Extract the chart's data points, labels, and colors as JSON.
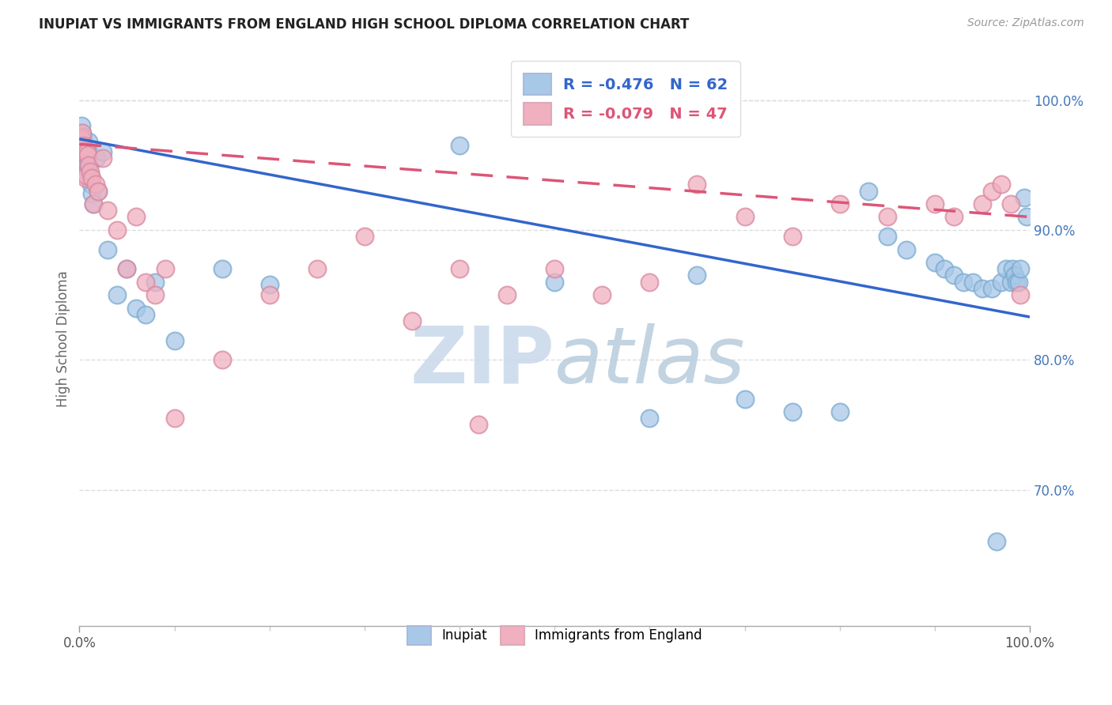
{
  "title": "INUPIAT VS IMMIGRANTS FROM ENGLAND HIGH SCHOOL DIPLOMA CORRELATION CHART",
  "source": "Source: ZipAtlas.com",
  "ylabel": "High School Diploma",
  "blue_color": "#a8c8e8",
  "blue_edge": "#7aaad0",
  "pink_color": "#f0b0c0",
  "pink_edge": "#d888a0",
  "blue_line_color": "#3366cc",
  "pink_line_color": "#dd5577",
  "watermark_zip_color": "#c8d8ea",
  "watermark_atlas_color": "#b8ccdc",
  "blue_R": -0.476,
  "blue_N": 62,
  "pink_R": -0.079,
  "pink_N": 47,
  "blue_x": [
    0.001,
    0.002,
    0.002,
    0.003,
    0.003,
    0.004,
    0.004,
    0.005,
    0.005,
    0.006,
    0.006,
    0.007,
    0.007,
    0.008,
    0.008,
    0.009,
    0.01,
    0.01,
    0.011,
    0.012,
    0.013,
    0.015,
    0.018,
    0.02,
    0.025,
    0.03,
    0.04,
    0.05,
    0.06,
    0.07,
    0.08,
    0.1,
    0.15,
    0.2,
    0.4,
    0.5,
    0.6,
    0.65,
    0.7,
    0.75,
    0.8,
    0.83,
    0.85,
    0.87,
    0.9,
    0.91,
    0.92,
    0.93,
    0.94,
    0.95,
    0.96,
    0.965,
    0.97,
    0.975,
    0.98,
    0.982,
    0.984,
    0.986,
    0.988,
    0.99,
    0.994,
    0.997
  ],
  "blue_y": [
    0.97,
    0.975,
    0.98,
    0.965,
    0.97,
    0.972,
    0.968,
    0.96,
    0.955,
    0.958,
    0.962,
    0.948,
    0.952,
    0.956,
    0.945,
    0.963,
    0.95,
    0.968,
    0.942,
    0.935,
    0.928,
    0.92,
    0.955,
    0.93,
    0.96,
    0.885,
    0.85,
    0.87,
    0.84,
    0.835,
    0.86,
    0.815,
    0.87,
    0.858,
    0.965,
    0.86,
    0.755,
    0.865,
    0.77,
    0.76,
    0.76,
    0.93,
    0.895,
    0.885,
    0.875,
    0.87,
    0.865,
    0.86,
    0.86,
    0.855,
    0.855,
    0.66,
    0.86,
    0.87,
    0.86,
    0.87,
    0.865,
    0.86,
    0.86,
    0.87,
    0.925,
    0.91
  ],
  "pink_x": [
    0.001,
    0.002,
    0.003,
    0.004,
    0.005,
    0.006,
    0.007,
    0.008,
    0.009,
    0.01,
    0.011,
    0.013,
    0.015,
    0.017,
    0.02,
    0.025,
    0.03,
    0.04,
    0.05,
    0.06,
    0.07,
    0.08,
    0.09,
    0.1,
    0.15,
    0.2,
    0.25,
    0.3,
    0.35,
    0.4,
    0.42,
    0.45,
    0.5,
    0.55,
    0.6,
    0.65,
    0.7,
    0.75,
    0.8,
    0.85,
    0.9,
    0.92,
    0.95,
    0.96,
    0.97,
    0.98,
    0.99
  ],
  "pink_y": [
    0.972,
    0.97,
    0.975,
    0.965,
    0.96,
    0.94,
    0.942,
    0.96,
    0.958,
    0.95,
    0.945,
    0.94,
    0.92,
    0.935,
    0.93,
    0.955,
    0.915,
    0.9,
    0.87,
    0.91,
    0.86,
    0.85,
    0.87,
    0.755,
    0.8,
    0.85,
    0.87,
    0.895,
    0.83,
    0.87,
    0.75,
    0.85,
    0.87,
    0.85,
    0.86,
    0.935,
    0.91,
    0.895,
    0.92,
    0.91,
    0.92,
    0.91,
    0.92,
    0.93,
    0.935,
    0.92,
    0.85
  ],
  "blue_line_x0": 0.0,
  "blue_line_y0": 0.97,
  "blue_line_x1": 1.0,
  "blue_line_y1": 0.833,
  "pink_line_x0": 0.0,
  "pink_line_y0": 0.966,
  "pink_line_x1": 1.0,
  "pink_line_y1": 0.91,
  "xlim": [
    0.0,
    1.0
  ],
  "ylim": [
    0.595,
    1.038
  ],
  "yticks": [
    0.7,
    0.8,
    0.9,
    1.0
  ],
  "ytick_labels": [
    "70.0%",
    "80.0%",
    "90.0%",
    "100.0%"
  ],
  "xtick_labels": [
    "0.0%",
    "100.0%"
  ],
  "figsize": [
    14.06,
    8.92
  ],
  "dpi": 100
}
